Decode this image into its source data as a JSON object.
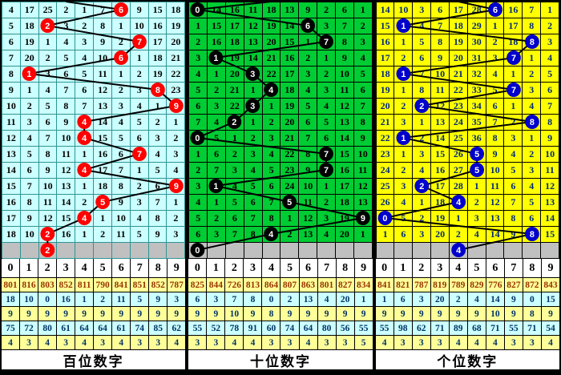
{
  "digit_headers": [
    "0",
    "1",
    "2",
    "3",
    "4",
    "5",
    "6",
    "7",
    "8",
    "9"
  ],
  "colors": {
    "hundreds_cell": "#ccffff",
    "hundreds_circle": "#ff0000",
    "tens_cell": "#00cc33",
    "tens_circle": "#000000",
    "units_cell": "#ffff00",
    "units_circle": "#0000cc",
    "gray_row": "#c0c0c0",
    "trend_line": "#000000",
    "stats_yellow": "#ffff99",
    "stats_cyan": "#ccffff"
  },
  "panels": [
    {
      "id": "hundreds",
      "title": "百位数字",
      "entry_col": 3,
      "header": [
        "0",
        "1",
        "2",
        "3",
        "4",
        "5",
        "6",
        "7",
        "8",
        "9"
      ],
      "rows": [
        {
          "cells": [
            "4",
            "17",
            "25",
            "2",
            "1",
            "7",
            "6",
            "9",
            "15",
            "18"
          ],
          "circle_col": 6
        },
        {
          "cells": [
            "5",
            "18",
            "2",
            "3",
            "2",
            "8",
            "1",
            "10",
            "16",
            "19"
          ],
          "circle_col": 2
        },
        {
          "cells": [
            "6",
            "19",
            "1",
            "4",
            "3",
            "9",
            "2",
            "7",
            "17",
            "20"
          ],
          "circle_col": 7
        },
        {
          "cells": [
            "7",
            "20",
            "2",
            "5",
            "4",
            "10",
            "6",
            "1",
            "18",
            "21"
          ],
          "circle_col": 6
        },
        {
          "cells": [
            "8",
            "1",
            "3",
            "6",
            "5",
            "11",
            "1",
            "2",
            "19",
            "22"
          ],
          "circle_col": 1
        },
        {
          "cells": [
            "9",
            "1",
            "4",
            "7",
            "6",
            "12",
            "2",
            "3",
            "8",
            "23"
          ],
          "circle_col": 8
        },
        {
          "cells": [
            "10",
            "2",
            "5",
            "8",
            "7",
            "13",
            "3",
            "4",
            "1",
            "9"
          ],
          "circle_col": 9
        },
        {
          "cells": [
            "11",
            "3",
            "6",
            "9",
            "4",
            "14",
            "4",
            "5",
            "2",
            "1"
          ],
          "circle_col": 4
        },
        {
          "cells": [
            "12",
            "4",
            "7",
            "10",
            "4",
            "15",
            "5",
            "6",
            "3",
            "2"
          ],
          "circle_col": 4
        },
        {
          "cells": [
            "13",
            "5",
            "8",
            "11",
            "1",
            "16",
            "6",
            "7",
            "4",
            "3"
          ],
          "circle_col": 7
        },
        {
          "cells": [
            "14",
            "6",
            "9",
            "12",
            "4",
            "17",
            "7",
            "1",
            "5",
            "4"
          ],
          "circle_col": 4
        },
        {
          "cells": [
            "15",
            "7",
            "10",
            "13",
            "1",
            "18",
            "8",
            "2",
            "6",
            "9"
          ],
          "circle_col": 9
        },
        {
          "cells": [
            "16",
            "8",
            "11",
            "14",
            "2",
            "5",
            "9",
            "3",
            "7",
            "1"
          ],
          "circle_col": 5
        },
        {
          "cells": [
            "17",
            "9",
            "12",
            "15",
            "4",
            "1",
            "10",
            "4",
            "8",
            "2"
          ],
          "circle_col": 4
        },
        {
          "cells": [
            "18",
            "10",
            "2",
            "16",
            "1",
            "2",
            "11",
            "5",
            "9",
            "3"
          ],
          "circle_col": 2
        }
      ],
      "gray_row": {
        "circle_col": 2,
        "circle_label": "2"
      },
      "stats": [
        [
          "801",
          "816",
          "803",
          "852",
          "811",
          "790",
          "841",
          "851",
          "852",
          "787"
        ],
        [
          "18",
          "10",
          "0",
          "16",
          "1",
          "2",
          "11",
          "5",
          "9",
          "3"
        ],
        [
          "9",
          "9",
          "9",
          "9",
          "9",
          "9",
          "9",
          "9",
          "9",
          "9"
        ],
        [
          "75",
          "72",
          "80",
          "61",
          "64",
          "64",
          "61",
          "74",
          "85",
          "62"
        ],
        [
          "4",
          "3",
          "4",
          "3",
          "4",
          "3",
          "4",
          "3",
          "3",
          "4"
        ]
      ]
    },
    {
      "id": "tens",
      "title": "十位数字",
      "entry_col": 4,
      "header": [
        "0",
        "1",
        "2",
        "3",
        "4",
        "5",
        "6",
        "7",
        "8",
        "9"
      ],
      "rows": [
        {
          "cells": [
            "0",
            "14",
            "16",
            "11",
            "18",
            "13",
            "9",
            "2",
            "6",
            "1"
          ],
          "circle_col": 0
        },
        {
          "cells": [
            "1",
            "15",
            "17",
            "12",
            "19",
            "14",
            "6",
            "3",
            "7",
            "2"
          ],
          "circle_col": 6
        },
        {
          "cells": [
            "2",
            "16",
            "18",
            "13",
            "20",
            "15",
            "1",
            "7",
            "8",
            "3"
          ],
          "circle_col": 7
        },
        {
          "cells": [
            "3",
            "1",
            "19",
            "14",
            "21",
            "16",
            "2",
            "1",
            "9",
            "4"
          ],
          "circle_col": 1
        },
        {
          "cells": [
            "4",
            "1",
            "20",
            "3",
            "22",
            "17",
            "3",
            "2",
            "10",
            "5"
          ],
          "circle_col": 3
        },
        {
          "cells": [
            "5",
            "2",
            "21",
            "1",
            "4",
            "18",
            "4",
            "3",
            "11",
            "6"
          ],
          "circle_col": 4
        },
        {
          "cells": [
            "6",
            "3",
            "22",
            "3",
            "1",
            "19",
            "5",
            "4",
            "12",
            "7"
          ],
          "circle_col": 3
        },
        {
          "cells": [
            "7",
            "4",
            "2",
            "1",
            "2",
            "20",
            "6",
            "5",
            "13",
            "8"
          ],
          "circle_col": 2
        },
        {
          "cells": [
            "0",
            "5",
            "1",
            "2",
            "3",
            "21",
            "7",
            "6",
            "14",
            "9"
          ],
          "circle_col": 0
        },
        {
          "cells": [
            "1",
            "6",
            "2",
            "3",
            "4",
            "22",
            "8",
            "7",
            "15",
            "10"
          ],
          "circle_col": 7
        },
        {
          "cells": [
            "2",
            "7",
            "3",
            "4",
            "5",
            "23",
            "9",
            "7",
            "16",
            "11"
          ],
          "circle_col": 7
        },
        {
          "cells": [
            "3",
            "1",
            "4",
            "5",
            "6",
            "24",
            "10",
            "1",
            "17",
            "12"
          ],
          "circle_col": 1
        },
        {
          "cells": [
            "4",
            "1",
            "5",
            "6",
            "7",
            "5",
            "11",
            "2",
            "18",
            "13"
          ],
          "circle_col": 5
        },
        {
          "cells": [
            "5",
            "2",
            "6",
            "7",
            "8",
            "1",
            "12",
            "3",
            "19",
            "9"
          ],
          "circle_col": 9
        },
        {
          "cells": [
            "6",
            "3",
            "7",
            "8",
            "4",
            "2",
            "13",
            "4",
            "20",
            "1"
          ],
          "circle_col": 4
        }
      ],
      "gray_row": {
        "circle_col": 0,
        "circle_label": "0"
      },
      "stats": [
        [
          "825",
          "844",
          "726",
          "813",
          "864",
          "807",
          "863",
          "801",
          "827",
          "834"
        ],
        [
          "6",
          "3",
          "7",
          "8",
          "0",
          "2",
          "13",
          "4",
          "20",
          "1"
        ],
        [
          "9",
          "9",
          "10",
          "9",
          "8",
          "9",
          "9",
          "9",
          "9",
          "9"
        ],
        [
          "55",
          "52",
          "78",
          "91",
          "60",
          "74",
          "64",
          "80",
          "56",
          "55"
        ],
        [
          "3",
          "3",
          "4",
          "4",
          "3",
          "3",
          "4",
          "3",
          "3",
          "5"
        ]
      ]
    },
    {
      "id": "units",
      "title": "个位数字",
      "entry_col": 4,
      "header": [
        "0",
        "1",
        "2",
        "3",
        "4",
        "5",
        "6",
        "7",
        "8",
        "9"
      ],
      "rows": [
        {
          "cells": [
            "14",
            "10",
            "3",
            "6",
            "17",
            "28",
            "6",
            "16",
            "7",
            "1"
          ],
          "circle_col": 6
        },
        {
          "cells": [
            "15",
            "1",
            "4",
            "7",
            "18",
            "29",
            "1",
            "17",
            "8",
            "2"
          ],
          "circle_col": 1
        },
        {
          "cells": [
            "16",
            "1",
            "5",
            "8",
            "19",
            "30",
            "2",
            "18",
            "8",
            "3"
          ],
          "circle_col": 8
        },
        {
          "cells": [
            "17",
            "2",
            "6",
            "9",
            "20",
            "31",
            "3",
            "7",
            "1",
            "4"
          ],
          "circle_col": 7
        },
        {
          "cells": [
            "18",
            "1",
            "7",
            "10",
            "21",
            "32",
            "4",
            "1",
            "2",
            "5"
          ],
          "circle_col": 1
        },
        {
          "cells": [
            "19",
            "1",
            "8",
            "11",
            "22",
            "33",
            "5",
            "7",
            "3",
            "6"
          ],
          "circle_col": 7
        },
        {
          "cells": [
            "20",
            "2",
            "2",
            "12",
            "23",
            "34",
            "6",
            "1",
            "4",
            "7"
          ],
          "circle_col": 2
        },
        {
          "cells": [
            "21",
            "3",
            "1",
            "13",
            "24",
            "35",
            "7",
            "2",
            "8",
            "8"
          ],
          "circle_col": 8
        },
        {
          "cells": [
            "22",
            "1",
            "2",
            "14",
            "25",
            "36",
            "8",
            "3",
            "1",
            "9"
          ],
          "circle_col": 1
        },
        {
          "cells": [
            "23",
            "1",
            "3",
            "15",
            "26",
            "5",
            "9",
            "4",
            "2",
            "10"
          ],
          "circle_col": 5
        },
        {
          "cells": [
            "24",
            "2",
            "4",
            "16",
            "27",
            "5",
            "10",
            "5",
            "3",
            "11"
          ],
          "circle_col": 5
        },
        {
          "cells": [
            "25",
            "3",
            "2",
            "17",
            "28",
            "1",
            "11",
            "6",
            "4",
            "12"
          ],
          "circle_col": 2
        },
        {
          "cells": [
            "26",
            "4",
            "1",
            "18",
            "4",
            "2",
            "12",
            "7",
            "5",
            "13"
          ],
          "circle_col": 4
        },
        {
          "cells": [
            "0",
            "5",
            "2",
            "19",
            "1",
            "3",
            "13",
            "8",
            "6",
            "14"
          ],
          "circle_col": 0
        },
        {
          "cells": [
            "1",
            "6",
            "3",
            "20",
            "2",
            "4",
            "14",
            "9",
            "8",
            "15"
          ],
          "circle_col": 8
        }
      ],
      "gray_row": {
        "circle_col": 4,
        "circle_label": "4"
      },
      "stats": [
        [
          "841",
          "821",
          "787",
          "819",
          "789",
          "829",
          "776",
          "827",
          "872",
          "843"
        ],
        [
          "1",
          "6",
          "3",
          "20",
          "2",
          "4",
          "14",
          "9",
          "0",
          "15"
        ],
        [
          "9",
          "9",
          "9",
          "9",
          "9",
          "9",
          "10",
          "9",
          "8",
          "9"
        ],
        [
          "55",
          "98",
          "62",
          "71",
          "89",
          "68",
          "71",
          "55",
          "71",
          "54"
        ],
        [
          "4",
          "3",
          "3",
          "3",
          "4",
          "4",
          "4",
          "3",
          "3",
          "4"
        ]
      ]
    }
  ]
}
